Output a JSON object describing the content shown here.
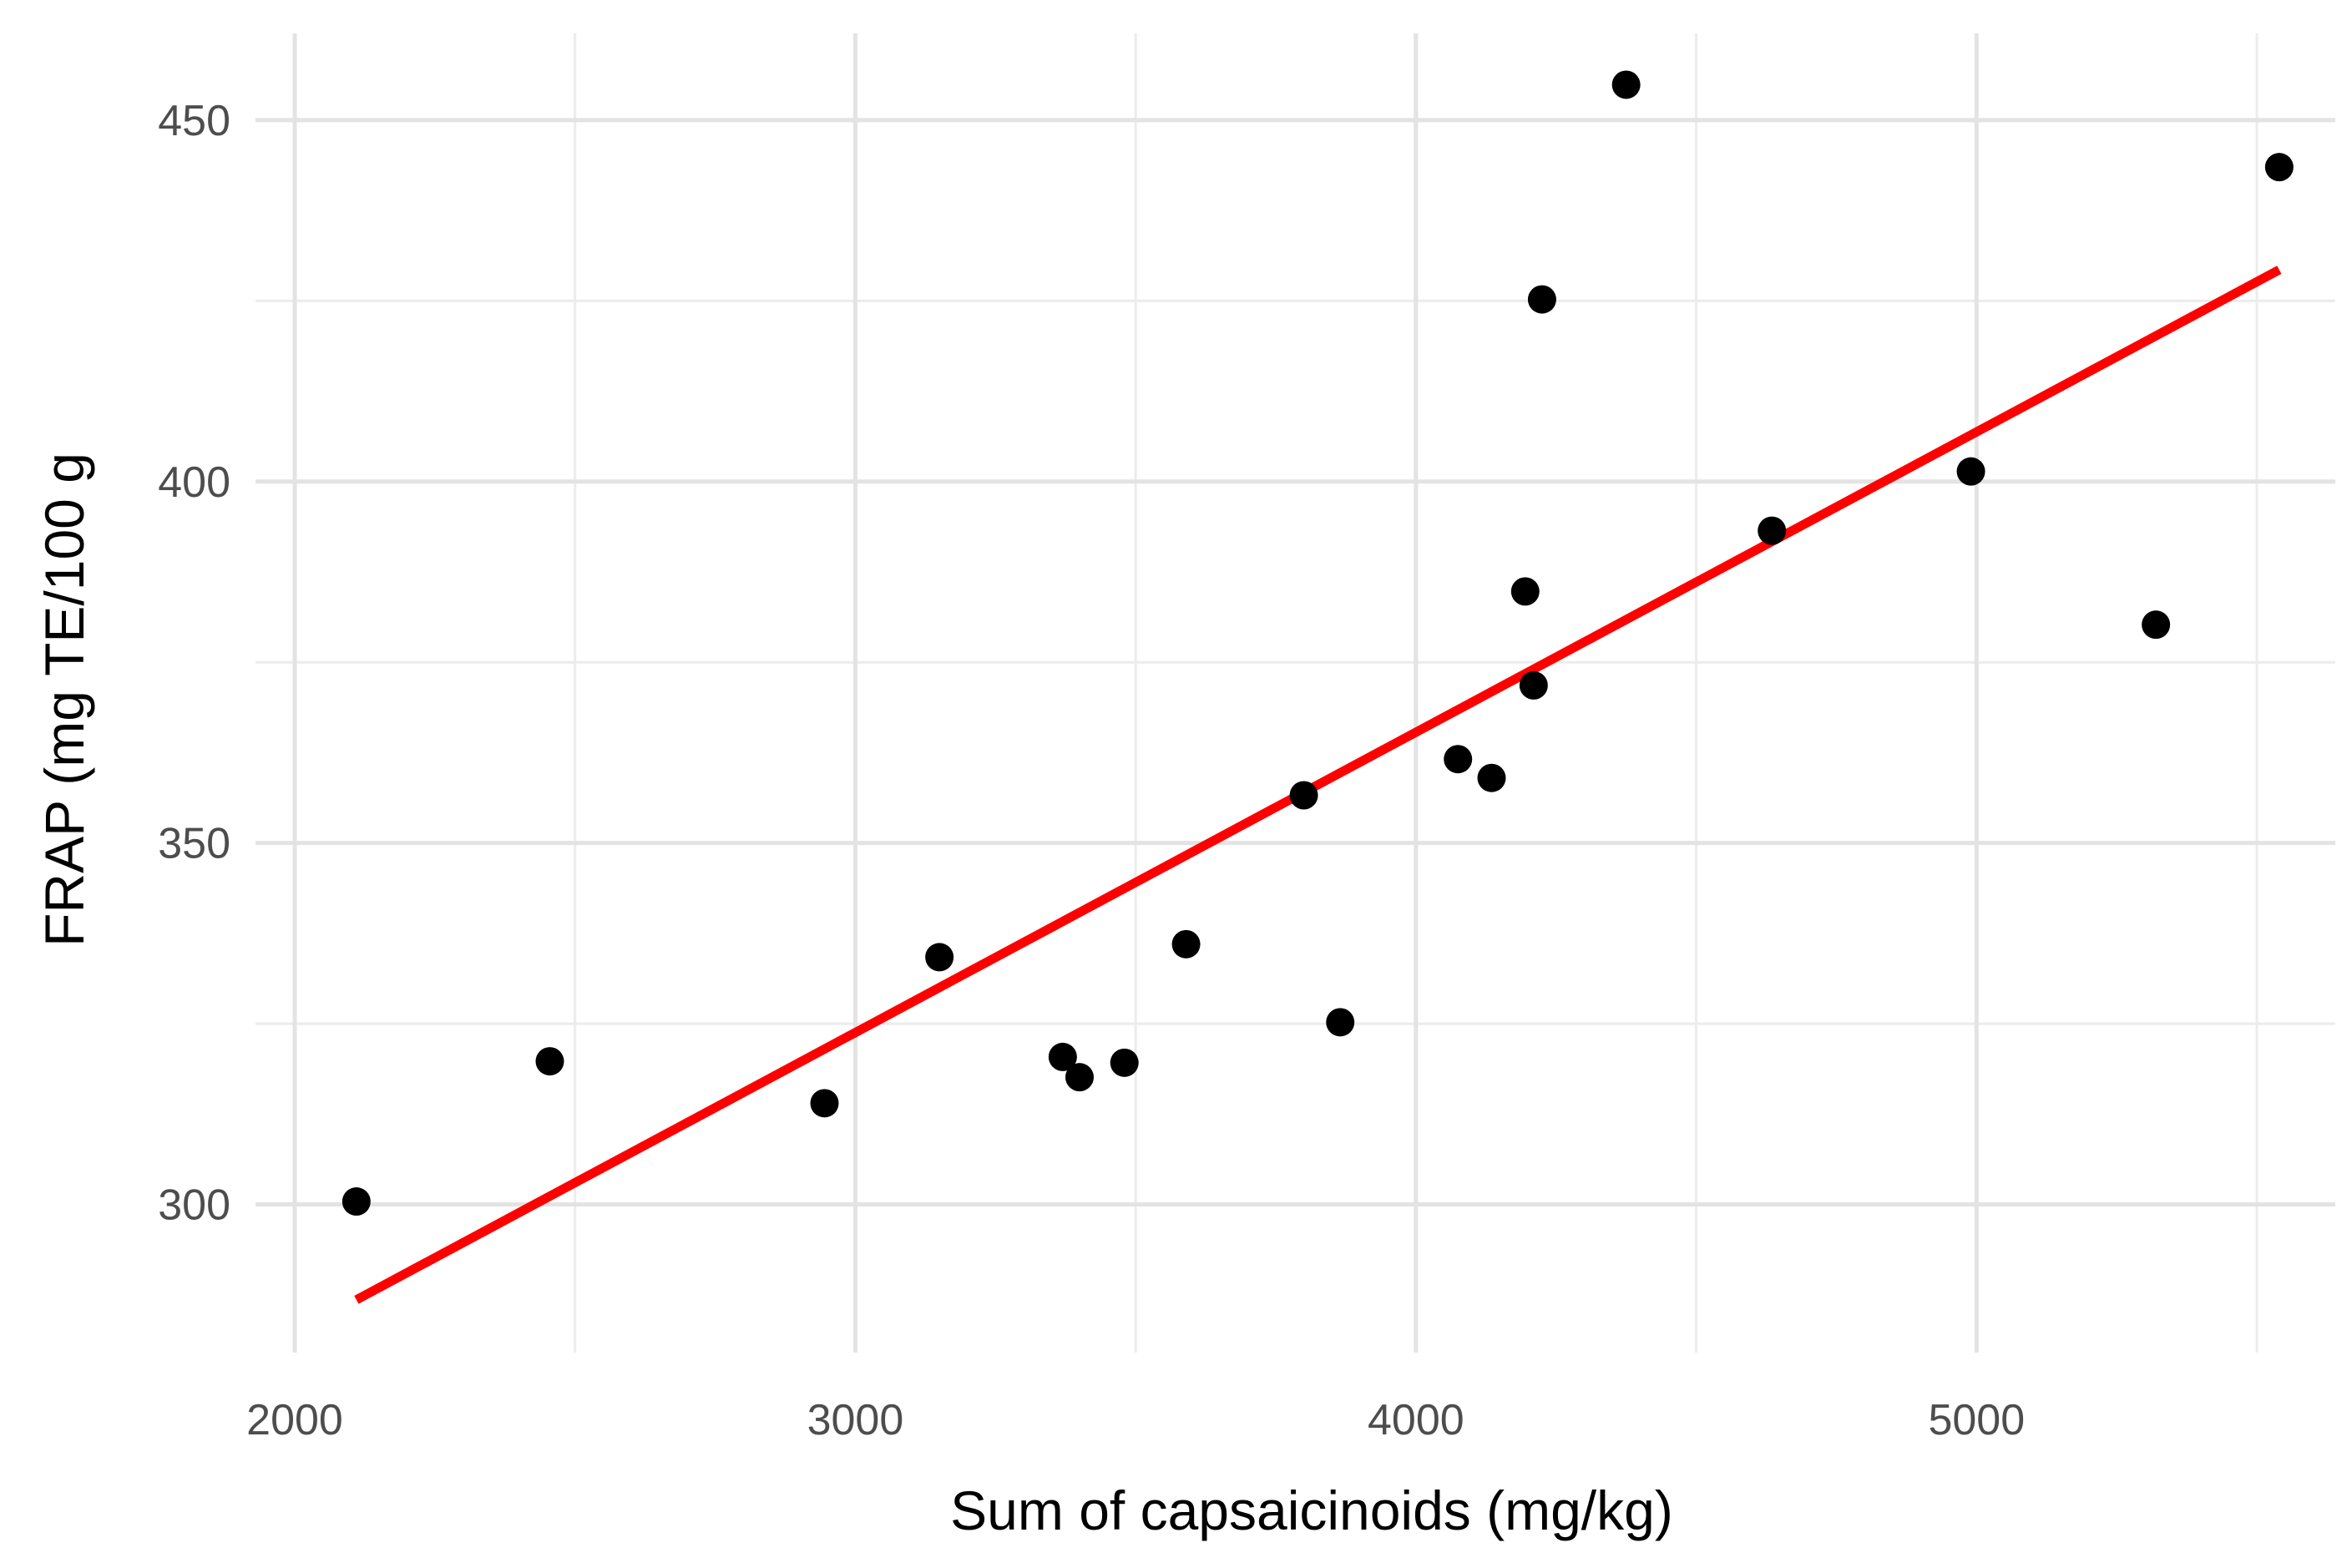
{
  "chart_data": {
    "type": "scatter",
    "title": "",
    "xlabel": "Sum of capsaicinoids (mg/kg)",
    "ylabel": "FRAP (mg TE/100 g",
    "xlim": [
      1930,
      5640
    ],
    "ylim": [
      279.5,
      462
    ],
    "x_ticks": [
      2000,
      3000,
      4000,
      5000
    ],
    "x_tick_labels": [
      "2000",
      "3000",
      "4000",
      "5000"
    ],
    "x_minor_ticks": [
      2500,
      3500,
      4500,
      5500
    ],
    "y_ticks": [
      300,
      350,
      400,
      450
    ],
    "y_tick_labels": [
      "300",
      "350",
      "400",
      "450"
    ],
    "y_minor_ticks": [
      325,
      375,
      425
    ],
    "grid": true,
    "point_color": "#000000",
    "series": [
      {
        "name": "samples",
        "type": "scatter",
        "points": [
          {
            "x": 2110,
            "y": 300.4
          },
          {
            "x": 2455,
            "y": 319.8
          },
          {
            "x": 2945,
            "y": 314.0
          },
          {
            "x": 3150,
            "y": 334.2
          },
          {
            "x": 3370,
            "y": 320.4
          },
          {
            "x": 3400,
            "y": 317.6
          },
          {
            "x": 3480,
            "y": 319.6
          },
          {
            "x": 3590,
            "y": 336.0
          },
          {
            "x": 3800,
            "y": 356.6
          },
          {
            "x": 3865,
            "y": 325.2
          },
          {
            "x": 4075,
            "y": 361.6
          },
          {
            "x": 4135,
            "y": 359.0
          },
          {
            "x": 4195,
            "y": 384.8
          },
          {
            "x": 4210,
            "y": 371.8
          },
          {
            "x": 4225,
            "y": 425.2
          },
          {
            "x": 4375,
            "y": 454.9
          },
          {
            "x": 4635,
            "y": 393.2
          },
          {
            "x": 4990,
            "y": 401.4
          },
          {
            "x": 5320,
            "y": 380.2
          },
          {
            "x": 5540,
            "y": 443.5
          }
        ]
      },
      {
        "name": "linear fit",
        "type": "line",
        "color": "#ff0000",
        "x": [
          2110,
          5540
        ],
        "y": [
          286.8,
          429.3
        ]
      }
    ]
  }
}
